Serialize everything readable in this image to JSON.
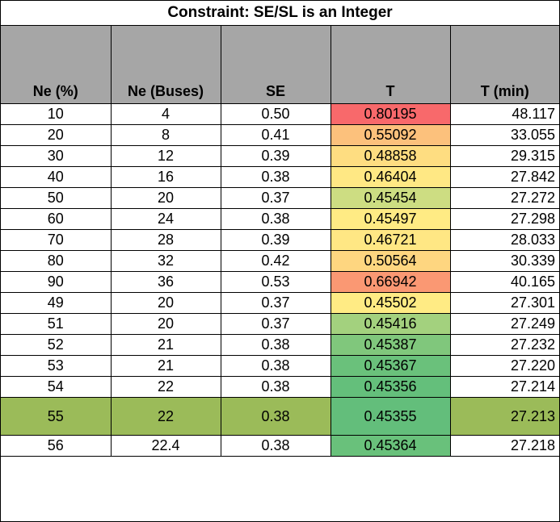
{
  "title": "Constraint: SE/SL is an Integer",
  "columns": [
    "Ne (%)",
    "Ne (Buses)",
    "SE",
    "T",
    "T (min)"
  ],
  "rows": [
    {
      "ne_pct": "10",
      "ne_buses": "4",
      "se": "0.50",
      "t": "0.80195",
      "t_min": "48.117",
      "t_color": "#f8696b",
      "highlight": false
    },
    {
      "ne_pct": "20",
      "ne_buses": "8",
      "se": "0.41",
      "t": "0.55092",
      "t_color": "#fcc17c",
      "t_min": "33.055",
      "highlight": false
    },
    {
      "ne_pct": "30",
      "ne_buses": "12",
      "se": "0.39",
      "t": "0.48858",
      "t_color": "#fedd81",
      "t_min": "29.315",
      "highlight": false
    },
    {
      "ne_pct": "40",
      "ne_buses": "16",
      "se": "0.38",
      "t": "0.46404",
      "t_color": "#ffe884",
      "t_min": "27.842",
      "highlight": false
    },
    {
      "ne_pct": "50",
      "ne_buses": "20",
      "se": "0.37",
      "t": "0.45454",
      "t_color": "#cddd82",
      "t_min": "27.272",
      "highlight": false
    },
    {
      "ne_pct": "60",
      "ne_buses": "24",
      "se": "0.38",
      "t": "0.45497",
      "t_color": "#ffeb84",
      "t_min": "27.298",
      "highlight": false
    },
    {
      "ne_pct": "70",
      "ne_buses": "28",
      "se": "0.39",
      "t": "0.46721",
      "t_color": "#ffe784",
      "t_min": "28.033",
      "highlight": false
    },
    {
      "ne_pct": "80",
      "ne_buses": "32",
      "se": "0.42",
      "t": "0.50564",
      "t_color": "#fed680",
      "t_min": "30.339",
      "highlight": false
    },
    {
      "ne_pct": "90",
      "ne_buses": "36",
      "se": "0.53",
      "t": "0.66942",
      "t_color": "#fa9873",
      "t_min": "40.165",
      "highlight": false
    },
    {
      "ne_pct": "49",
      "ne_buses": "20",
      "se": "0.37",
      "t": "0.45502",
      "t_color": "#ffeb84",
      "t_min": "27.301",
      "highlight": false
    },
    {
      "ne_pct": "51",
      "ne_buses": "20",
      "se": "0.37",
      "t": "0.45416",
      "t_color": "#a3d17e",
      "t_min": "27.249",
      "highlight": false
    },
    {
      "ne_pct": "52",
      "ne_buses": "21",
      "se": "0.38",
      "t": "0.45387",
      "t_color": "#80c77c",
      "t_min": "27.232",
      "highlight": false
    },
    {
      "ne_pct": "53",
      "ne_buses": "21",
      "se": "0.38",
      "t": "0.45367",
      "t_color": "#6ac17b",
      "t_min": "27.220",
      "highlight": false
    },
    {
      "ne_pct": "54",
      "ne_buses": "22",
      "se": "0.38",
      "t": "0.45356",
      "t_color": "#64bf7b",
      "t_min": "27.214",
      "highlight": false
    },
    {
      "ne_pct": "55",
      "ne_buses": "22",
      "se": "0.38",
      "t": "0.45355",
      "t_color": "#63be7b",
      "t_min": "27.213",
      "highlight": true
    },
    {
      "ne_pct": "56",
      "ne_buses": "22.4",
      "se": "0.38",
      "t": "0.45364",
      "t_color": "#69c17b",
      "t_min": "27.218",
      "highlight": false
    }
  ],
  "colors": {
    "header_bg": "#a6a6a6",
    "highlight_row": "#9bbb59"
  }
}
